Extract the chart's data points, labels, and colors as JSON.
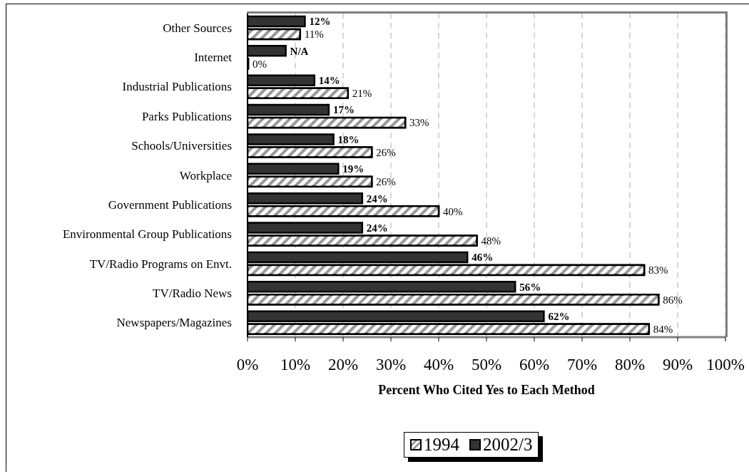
{
  "chart_data": {
    "type": "bar",
    "orientation": "horizontal",
    "categories": [
      "Other Sources",
      "Internet",
      "Industrial Publications",
      "Parks Publications",
      "Schools/Universities",
      "Workplace",
      "Government Publications",
      "Environmental Group Publications",
      "TV/Radio Programs on Envt.",
      "TV/Radio News",
      "Newspapers/Magazines"
    ],
    "series": [
      {
        "name": "1994",
        "color": "#999999",
        "values": [
          11,
          0,
          21,
          33,
          26,
          26,
          40,
          48,
          83,
          86,
          84
        ],
        "value_labels": [
          "11%",
          "0%",
          "21%",
          "33%",
          "26%",
          "26%",
          "40%",
          "48%",
          "83%",
          "86%",
          "84%"
        ]
      },
      {
        "name": "2002/3",
        "color": "#333333",
        "values": [
          12,
          8,
          14,
          17,
          18,
          19,
          24,
          24,
          46,
          56,
          62
        ],
        "value_labels": [
          "12%",
          "N/A",
          "14%",
          "17%",
          "18%",
          "19%",
          "24%",
          "24%",
          "46%",
          "56%",
          "62%"
        ]
      }
    ],
    "xlabel": "Percent Who Cited Yes to Each Method",
    "xlim": [
      0,
      100
    ],
    "xticks": [
      {
        "value": 0,
        "label": "0%"
      },
      {
        "value": 10,
        "label": "10%"
      },
      {
        "value": 20,
        "label": "20%"
      },
      {
        "value": 30,
        "label": "30%"
      },
      {
        "value": 40,
        "label": "40%"
      },
      {
        "value": 50,
        "label": "50%"
      },
      {
        "value": 60,
        "label": "60%"
      },
      {
        "value": 70,
        "label": "70%"
      },
      {
        "value": 80,
        "label": "80%"
      },
      {
        "value": 90,
        "label": "90%"
      },
      {
        "value": 100,
        "label": "100%"
      }
    ],
    "grid": "x",
    "legend": "bottom"
  }
}
